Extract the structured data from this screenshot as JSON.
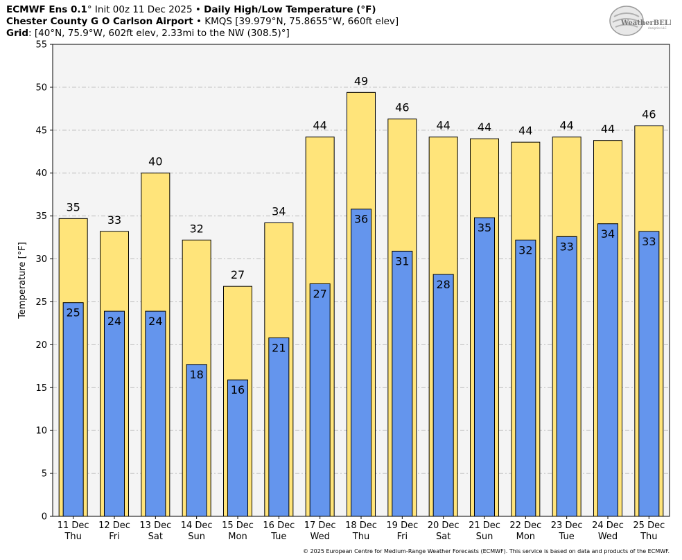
{
  "header": {
    "line1": {
      "model": "ECMWF Ens 0.1",
      "deg": "°",
      "init": " Init 00z 11 Dec 2025 • ",
      "product": "Daily High/Low Temperature (°F)"
    },
    "line2": {
      "station": "Chester County G O Carlson Airport",
      "details": " • KMQS [39.979°N, 75.8655°W, 660ft elev]"
    },
    "line3": {
      "label": "Grid",
      "details": ": [40°N, 75.9°W, 602ft elev, 2.33mi to the NW (308.5)°]"
    }
  },
  "logo": {
    "text": "WeatherBELL",
    "sub": "Analytics LLC"
  },
  "copyright": "© 2025 European Centre for Medium-Range Weather Forecasts (ECMWF). This service is based on data and products of the ECMWF.",
  "colors": {
    "high": "#FFE47A",
    "low": "#6495ED",
    "plot_bg": "#F4F4F4",
    "grid": "#BBBBBB"
  },
  "chart_data": {
    "type": "bar",
    "title": "Daily High/Low Temperature (°F)",
    "ylabel": "Temperature [°F]",
    "xlabel": "",
    "ylim": [
      0,
      55
    ],
    "yticks": [
      0,
      5,
      10,
      15,
      20,
      25,
      30,
      35,
      40,
      45,
      50,
      55
    ],
    "grid": true,
    "categories": [
      {
        "date": "11 Dec",
        "day": "Thu"
      },
      {
        "date": "12 Dec",
        "day": "Fri"
      },
      {
        "date": "13 Dec",
        "day": "Sat"
      },
      {
        "date": "14 Dec",
        "day": "Sun"
      },
      {
        "date": "15 Dec",
        "day": "Mon"
      },
      {
        "date": "16 Dec",
        "day": "Tue"
      },
      {
        "date": "17 Dec",
        "day": "Wed"
      },
      {
        "date": "18 Dec",
        "day": "Thu"
      },
      {
        "date": "19 Dec",
        "day": "Fri"
      },
      {
        "date": "20 Dec",
        "day": "Sat"
      },
      {
        "date": "21 Dec",
        "day": "Sun"
      },
      {
        "date": "22 Dec",
        "day": "Mon"
      },
      {
        "date": "23 Dec",
        "day": "Tue"
      },
      {
        "date": "24 Dec",
        "day": "Wed"
      },
      {
        "date": "25 Dec",
        "day": "Thu"
      }
    ],
    "series": [
      {
        "name": "High",
        "values": [
          34.7,
          33.2,
          40.0,
          32.2,
          26.8,
          34.2,
          44.2,
          49.4,
          46.3,
          44.2,
          44.0,
          43.6,
          44.2,
          43.8,
          45.5
        ],
        "labels": [
          "35",
          "33",
          "40",
          "32",
          "27",
          "34",
          "44",
          "49",
          "46",
          "44",
          "44",
          "44",
          "44",
          "44",
          "46"
        ]
      },
      {
        "name": "Low",
        "values": [
          24.9,
          23.9,
          23.9,
          17.7,
          15.9,
          20.8,
          27.1,
          35.8,
          30.9,
          28.2,
          34.8,
          32.2,
          32.6,
          34.1,
          33.2
        ],
        "labels": [
          "25",
          "24",
          "24",
          "18",
          "16",
          "21",
          "27",
          "36",
          "31",
          "28",
          "35",
          "32",
          "33",
          "34",
          "33"
        ]
      }
    ]
  }
}
